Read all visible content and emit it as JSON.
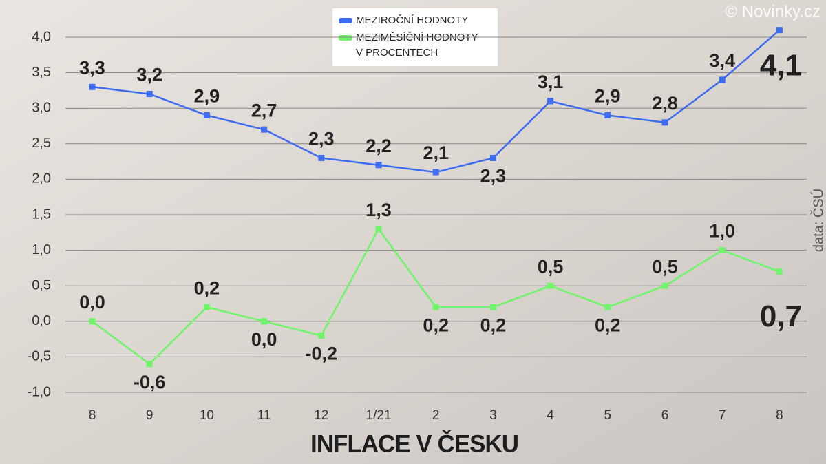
{
  "chart_data": {
    "type": "line",
    "title": "INFLACE V ČESKU",
    "watermark": "© Novinky.cz",
    "source": "data: ČSÚ",
    "unit_note": "V PROCENTECH",
    "categories": [
      "8",
      "9",
      "10",
      "11",
      "12",
      "1/21",
      "2",
      "3",
      "4",
      "5",
      "6",
      "7",
      "8"
    ],
    "series": [
      {
        "name": "MEZIROČNÍ HODNOTY",
        "color": "#3d6cf0",
        "values": [
          3.3,
          3.2,
          2.9,
          2.7,
          2.3,
          2.2,
          2.1,
          2.3,
          3.1,
          2.9,
          2.8,
          3.4,
          4.1
        ],
        "value_labels": [
          "3,3",
          "3,2",
          "2,9",
          "2,7",
          "2,3",
          "2,2",
          "2,1",
          "2,3",
          "3,1",
          "2,9",
          "2,8",
          "3,4",
          "4,1"
        ]
      },
      {
        "name": "MEZIMĚSÍČNÍ HODNOTY",
        "color": "#6ef56a",
        "values": [
          0.0,
          -0.6,
          0.2,
          0.0,
          -0.2,
          1.3,
          0.2,
          0.2,
          0.5,
          0.2,
          0.5,
          1.0,
          0.7
        ],
        "value_labels": [
          "0,0",
          "-0,6",
          "0,2",
          "0,0",
          "-0,2",
          "1,3",
          "0,2",
          "0,2",
          "0,5",
          "0,2",
          "0,5",
          "1,0",
          "0,7"
        ]
      }
    ],
    "ylim": [
      -1.0,
      4.0
    ],
    "yticks": [
      {
        "value": -1.0,
        "label": "-1,0"
      },
      {
        "value": -0.5,
        "label": "-0,5"
      },
      {
        "value": 0.0,
        "label": "0,0"
      },
      {
        "value": 0.5,
        "label": "0,5"
      },
      {
        "value": 1.0,
        "label": "1,0"
      },
      {
        "value": 1.5,
        "label": "1,5"
      },
      {
        "value": 2.0,
        "label": "2,0"
      },
      {
        "value": 2.5,
        "label": "2,5"
      },
      {
        "value": 3.0,
        "label": "3,0"
      },
      {
        "value": 3.5,
        "label": "3,5"
      },
      {
        "value": 4.0,
        "label": "4,0"
      }
    ],
    "grid": true
  }
}
